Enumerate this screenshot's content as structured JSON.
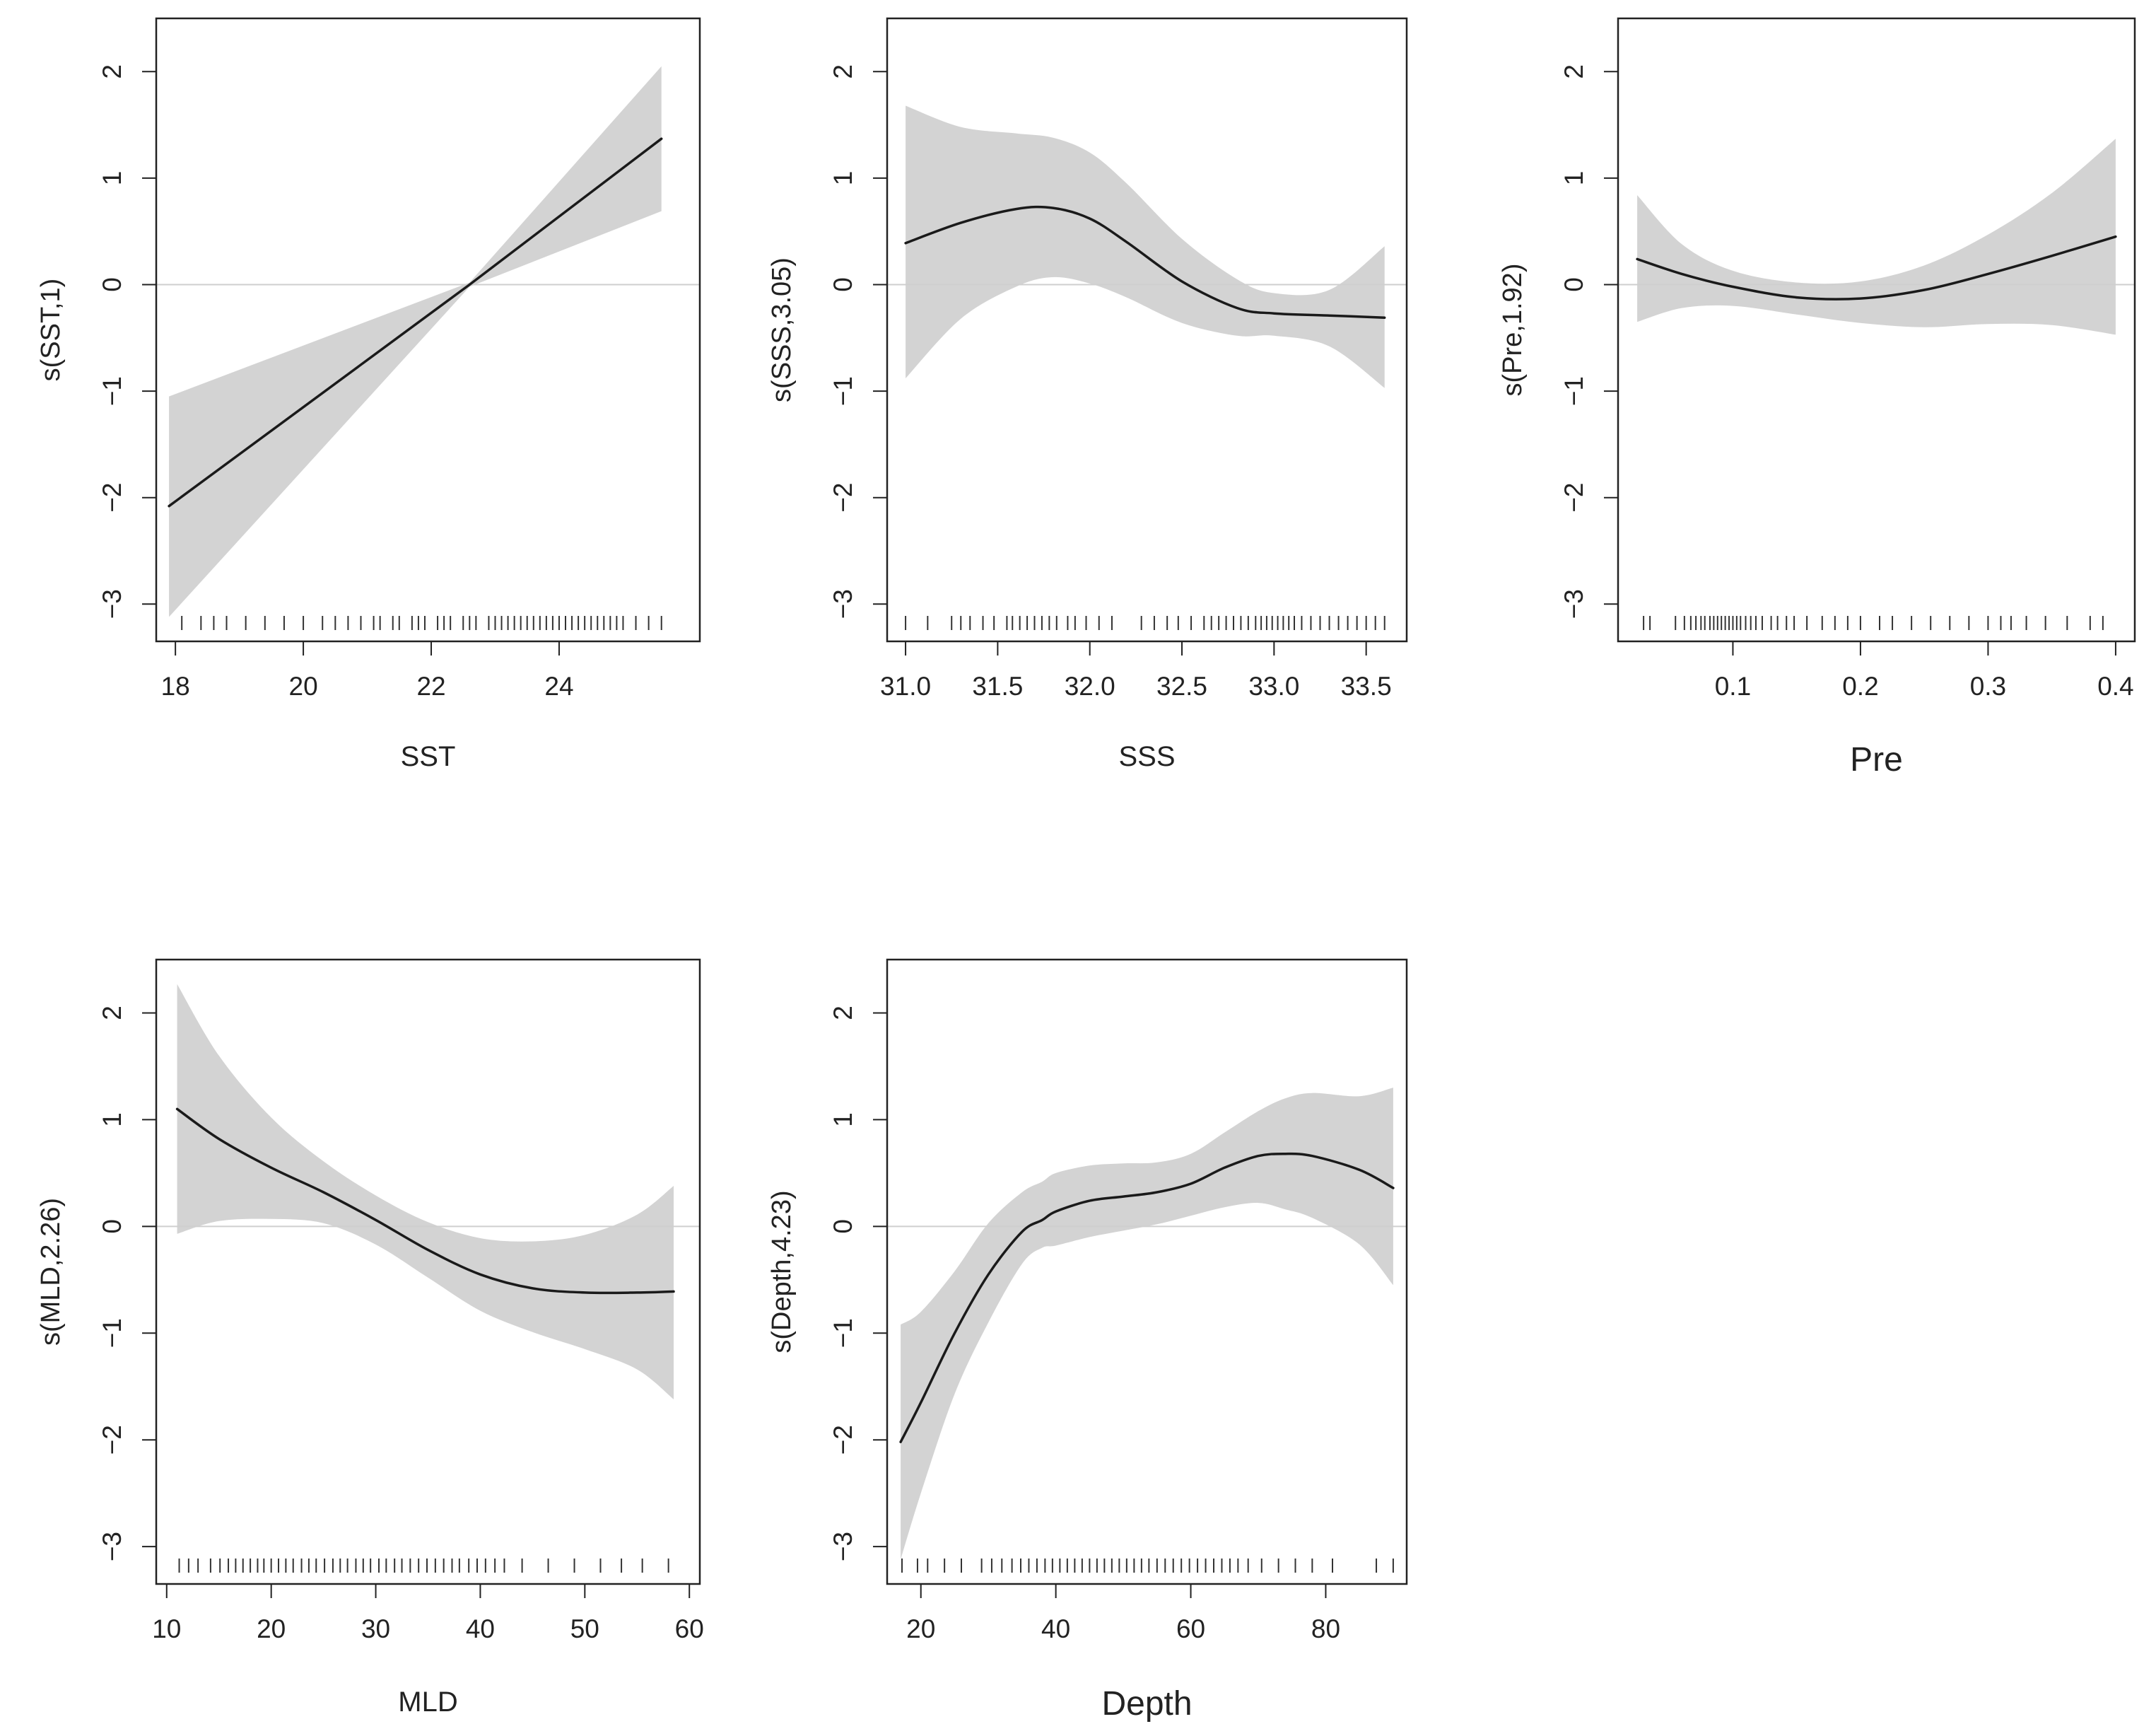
{
  "chart_data": [
    {
      "type": "line",
      "title": "",
      "xlabel": "SST",
      "ylabel": "s(SST,1)",
      "xlim": [
        17.7,
        26.2
      ],
      "ylim": [
        -3.35,
        2.5
      ],
      "xticks": [
        18,
        20,
        22,
        24
      ],
      "yticks": [
        -3,
        -2,
        -1,
        0,
        1,
        2
      ],
      "zero_line": true,
      "series": [
        {
          "name": "fit",
          "x": [
            17.9,
            22.6,
            25.6
          ],
          "y": [
            -2.08,
            0.0,
            1.37
          ]
        },
        {
          "name": "upper",
          "x": [
            17.9,
            22.6,
            25.6
          ],
          "y": [
            -1.05,
            0.02,
            2.05
          ]
        },
        {
          "name": "lower",
          "x": [
            17.9,
            22.6,
            25.6
          ],
          "y": [
            -3.12,
            -0.02,
            0.69
          ]
        }
      ],
      "rug": [
        18.1,
        18.4,
        18.6,
        18.8,
        19.1,
        19.4,
        19.7,
        20.0,
        20.3,
        20.5,
        20.7,
        20.9,
        21.1,
        21.2,
        21.4,
        21.5,
        21.7,
        21.8,
        21.9,
        22.1,
        22.2,
        22.3,
        22.5,
        22.6,
        22.7,
        22.9,
        23.0,
        23.1,
        23.2,
        23.3,
        23.4,
        23.5,
        23.6,
        23.7,
        23.8,
        23.9,
        24.0,
        24.1,
        24.2,
        24.3,
        24.4,
        24.5,
        24.6,
        24.7,
        24.8,
        24.9,
        25.0,
        25.2,
        25.4,
        25.6
      ]
    },
    {
      "type": "line",
      "title": "",
      "xlabel": "SSS",
      "ylabel": "s(SSS,3.05)",
      "xlim": [
        30.9,
        33.72
      ],
      "ylim": [
        -3.35,
        2.5
      ],
      "xticks": [
        31.0,
        31.5,
        32.0,
        32.5,
        33.0,
        33.5
      ],
      "xtick_labels": [
        "31.0",
        "31.5",
        "32.0",
        "32.5",
        "33.0",
        "33.5"
      ],
      "yticks": [
        -3,
        -2,
        -1,
        0,
        1,
        2
      ],
      "zero_line": true,
      "series": [
        {
          "name": "fit",
          "x": [
            31.0,
            31.3,
            31.6,
            31.8,
            32.0,
            32.2,
            32.5,
            32.8,
            33.0,
            33.3,
            33.6
          ],
          "y": [
            0.39,
            0.58,
            0.71,
            0.72,
            0.62,
            0.4,
            0.03,
            -0.22,
            -0.27,
            -0.29,
            -0.31
          ]
        },
        {
          "name": "upper",
          "x": [
            31.0,
            31.3,
            31.6,
            31.8,
            32.0,
            32.2,
            32.5,
            32.8,
            33.0,
            33.3,
            33.6
          ],
          "y": [
            1.68,
            1.48,
            1.42,
            1.38,
            1.24,
            0.95,
            0.43,
            0.05,
            -0.08,
            -0.05,
            0.36
          ]
        },
        {
          "name": "lower",
          "x": [
            31.0,
            31.3,
            31.6,
            31.8,
            32.0,
            32.2,
            32.5,
            32.8,
            33.0,
            33.3,
            33.6
          ],
          "y": [
            -0.88,
            -0.32,
            -0.02,
            0.07,
            0.01,
            -0.12,
            -0.36,
            -0.48,
            -0.48,
            -0.58,
            -0.97
          ]
        }
      ],
      "rug": [
        31.0,
        31.12,
        31.25,
        31.3,
        31.35,
        31.42,
        31.48,
        31.55,
        31.58,
        31.62,
        31.66,
        31.7,
        31.74,
        31.78,
        31.82,
        31.88,
        31.92,
        31.98,
        32.05,
        32.12,
        32.28,
        32.35,
        32.42,
        32.48,
        32.55,
        32.62,
        32.66,
        32.7,
        32.74,
        32.78,
        32.82,
        32.86,
        32.9,
        32.93,
        32.96,
        32.99,
        33.02,
        33.05,
        33.08,
        33.11,
        33.15,
        33.2,
        33.25,
        33.3,
        33.35,
        33.4,
        33.45,
        33.5,
        33.55,
        33.6
      ]
    },
    {
      "type": "line",
      "title": "",
      "xlabel": "Pre",
      "ylabel": "s(Pre,1.92)",
      "xlim": [
        0.01,
        0.415
      ],
      "ylim": [
        -3.35,
        2.5
      ],
      "xticks": [
        0.1,
        0.2,
        0.3,
        0.4
      ],
      "xtick_labels": [
        "0.1",
        "0.2",
        "0.3",
        "0.4"
      ],
      "yticks": [
        -3,
        -2,
        -1,
        0,
        1,
        2
      ],
      "zero_line": true,
      "series": [
        {
          "name": "fit",
          "x": [
            0.025,
            0.06,
            0.1,
            0.15,
            0.2,
            0.25,
            0.3,
            0.35,
            0.4
          ],
          "y": [
            0.24,
            0.1,
            -0.02,
            -0.12,
            -0.13,
            -0.05,
            0.1,
            0.27,
            0.45
          ]
        },
        {
          "name": "upper",
          "x": [
            0.025,
            0.06,
            0.1,
            0.15,
            0.2,
            0.25,
            0.3,
            0.35,
            0.4
          ],
          "y": [
            0.84,
            0.38,
            0.13,
            0.02,
            0.03,
            0.18,
            0.47,
            0.86,
            1.37
          ]
        },
        {
          "name": "lower",
          "x": [
            0.025,
            0.06,
            0.1,
            0.15,
            0.2,
            0.25,
            0.3,
            0.35,
            0.4
          ],
          "y": [
            -0.35,
            -0.22,
            -0.2,
            -0.28,
            -0.36,
            -0.4,
            -0.37,
            -0.38,
            -0.47
          ]
        }
      ],
      "rug": [
        0.03,
        0.035,
        0.055,
        0.062,
        0.067,
        0.071,
        0.075,
        0.078,
        0.082,
        0.085,
        0.088,
        0.091,
        0.094,
        0.097,
        0.1,
        0.103,
        0.106,
        0.11,
        0.114,
        0.118,
        0.123,
        0.13,
        0.135,
        0.142,
        0.148,
        0.158,
        0.17,
        0.18,
        0.19,
        0.2,
        0.215,
        0.225,
        0.24,
        0.255,
        0.27,
        0.285,
        0.3,
        0.31,
        0.318,
        0.33,
        0.345,
        0.362,
        0.38,
        0.39
      ]
    },
    {
      "type": "line",
      "title": "",
      "xlabel": "MLD",
      "ylabel": "s(MLD,2.26)",
      "xlim": [
        9.0,
        61.0
      ],
      "ylim": [
        -3.35,
        2.5
      ],
      "xticks": [
        10,
        20,
        30,
        40,
        50,
        60
      ],
      "yticks": [
        -3,
        -2,
        -1,
        0,
        1,
        2
      ],
      "zero_line": true,
      "series": [
        {
          "name": "fit",
          "x": [
            11,
            15,
            20,
            25,
            30,
            35,
            40,
            45,
            50,
            55,
            58.5
          ],
          "y": [
            1.1,
            0.82,
            0.55,
            0.32,
            0.06,
            -0.22,
            -0.45,
            -0.58,
            -0.62,
            -0.62,
            -0.61
          ]
        },
        {
          "name": "upper",
          "x": [
            11,
            15,
            20,
            25,
            30,
            35,
            40,
            45,
            50,
            55,
            58.5
          ],
          "y": [
            2.27,
            1.6,
            1.02,
            0.61,
            0.29,
            0.04,
            -0.11,
            -0.14,
            -0.08,
            0.11,
            0.38
          ]
        },
        {
          "name": "lower",
          "x": [
            11,
            15,
            20,
            25,
            30,
            35,
            40,
            45,
            50,
            55,
            58.5
          ],
          "y": [
            -0.07,
            0.05,
            0.07,
            0.03,
            -0.17,
            -0.48,
            -0.79,
            -0.99,
            -1.15,
            -1.34,
            -1.62
          ]
        }
      ],
      "rug": [
        11.2,
        12.1,
        13.0,
        14.2,
        15.1,
        15.9,
        16.6,
        17.3,
        18.0,
        18.7,
        19.3,
        20.0,
        20.7,
        21.4,
        22.1,
        22.9,
        23.6,
        24.3,
        25.1,
        25.9,
        26.6,
        27.3,
        28.1,
        28.8,
        29.5,
        30.3,
        31.0,
        31.8,
        32.5,
        33.3,
        34.1,
        34.9,
        35.7,
        36.5,
        37.3,
        38.0,
        38.9,
        39.7,
        40.5,
        41.4,
        42.3,
        44.0,
        46.5,
        49.0,
        51.5,
        53.5,
        55.5,
        58.0
      ]
    },
    {
      "type": "line",
      "title": "",
      "xlabel": "Depth",
      "ylabel": "s(Depth,4.23)",
      "xlim": [
        15.0,
        92.0
      ],
      "ylim": [
        -3.35,
        2.5
      ],
      "xticks": [
        20,
        40,
        60,
        80
      ],
      "yticks": [
        -3,
        -2,
        -1,
        0,
        1,
        2
      ],
      "zero_line": true,
      "series": [
        {
          "name": "fit",
          "x": [
            17,
            20,
            25,
            30,
            35,
            38,
            40,
            45,
            50,
            55,
            60,
            65,
            70,
            74,
            78,
            85,
            90
          ],
          "y": [
            -2.02,
            -1.65,
            -1.0,
            -0.45,
            -0.05,
            0.06,
            0.14,
            0.24,
            0.28,
            0.32,
            0.4,
            0.55,
            0.66,
            0.68,
            0.66,
            0.53,
            0.36
          ]
        },
        {
          "name": "upper",
          "x": [
            17,
            20,
            25,
            30,
            35,
            38,
            40,
            45,
            50,
            55,
            60,
            65,
            70,
            74,
            78,
            85,
            90
          ],
          "y": [
            -0.92,
            -0.8,
            -0.42,
            0.03,
            0.32,
            0.42,
            0.5,
            0.57,
            0.59,
            0.6,
            0.68,
            0.88,
            1.08,
            1.2,
            1.25,
            1.22,
            1.3
          ]
        },
        {
          "name": "lower",
          "x": [
            17,
            20,
            25,
            30,
            35,
            38,
            40,
            45,
            50,
            55,
            60,
            65,
            70,
            74,
            78,
            85,
            90
          ],
          "y": [
            -3.12,
            -2.5,
            -1.57,
            -0.9,
            -0.35,
            -0.2,
            -0.18,
            -0.1,
            -0.04,
            0.02,
            0.1,
            0.18,
            0.22,
            0.16,
            0.08,
            -0.17,
            -0.55
          ]
        }
      ],
      "rug": [
        17.2,
        19.5,
        21.0,
        23.5,
        26.0,
        29.0,
        30.5,
        32.0,
        33.5,
        34.8,
        36.0,
        37.2,
        38.4,
        39.5,
        40.6,
        41.7,
        42.8,
        43.9,
        45.0,
        46.1,
        47.2,
        48.3,
        49.4,
        50.5,
        51.6,
        52.7,
        53.8,
        55.0,
        56.2,
        57.4,
        58.6,
        59.8,
        61.0,
        62.2,
        63.4,
        64.6,
        65.8,
        67.0,
        68.5,
        70.5,
        73.0,
        75.5,
        78.0,
        81.0,
        87.5,
        90.0
      ]
    }
  ]
}
